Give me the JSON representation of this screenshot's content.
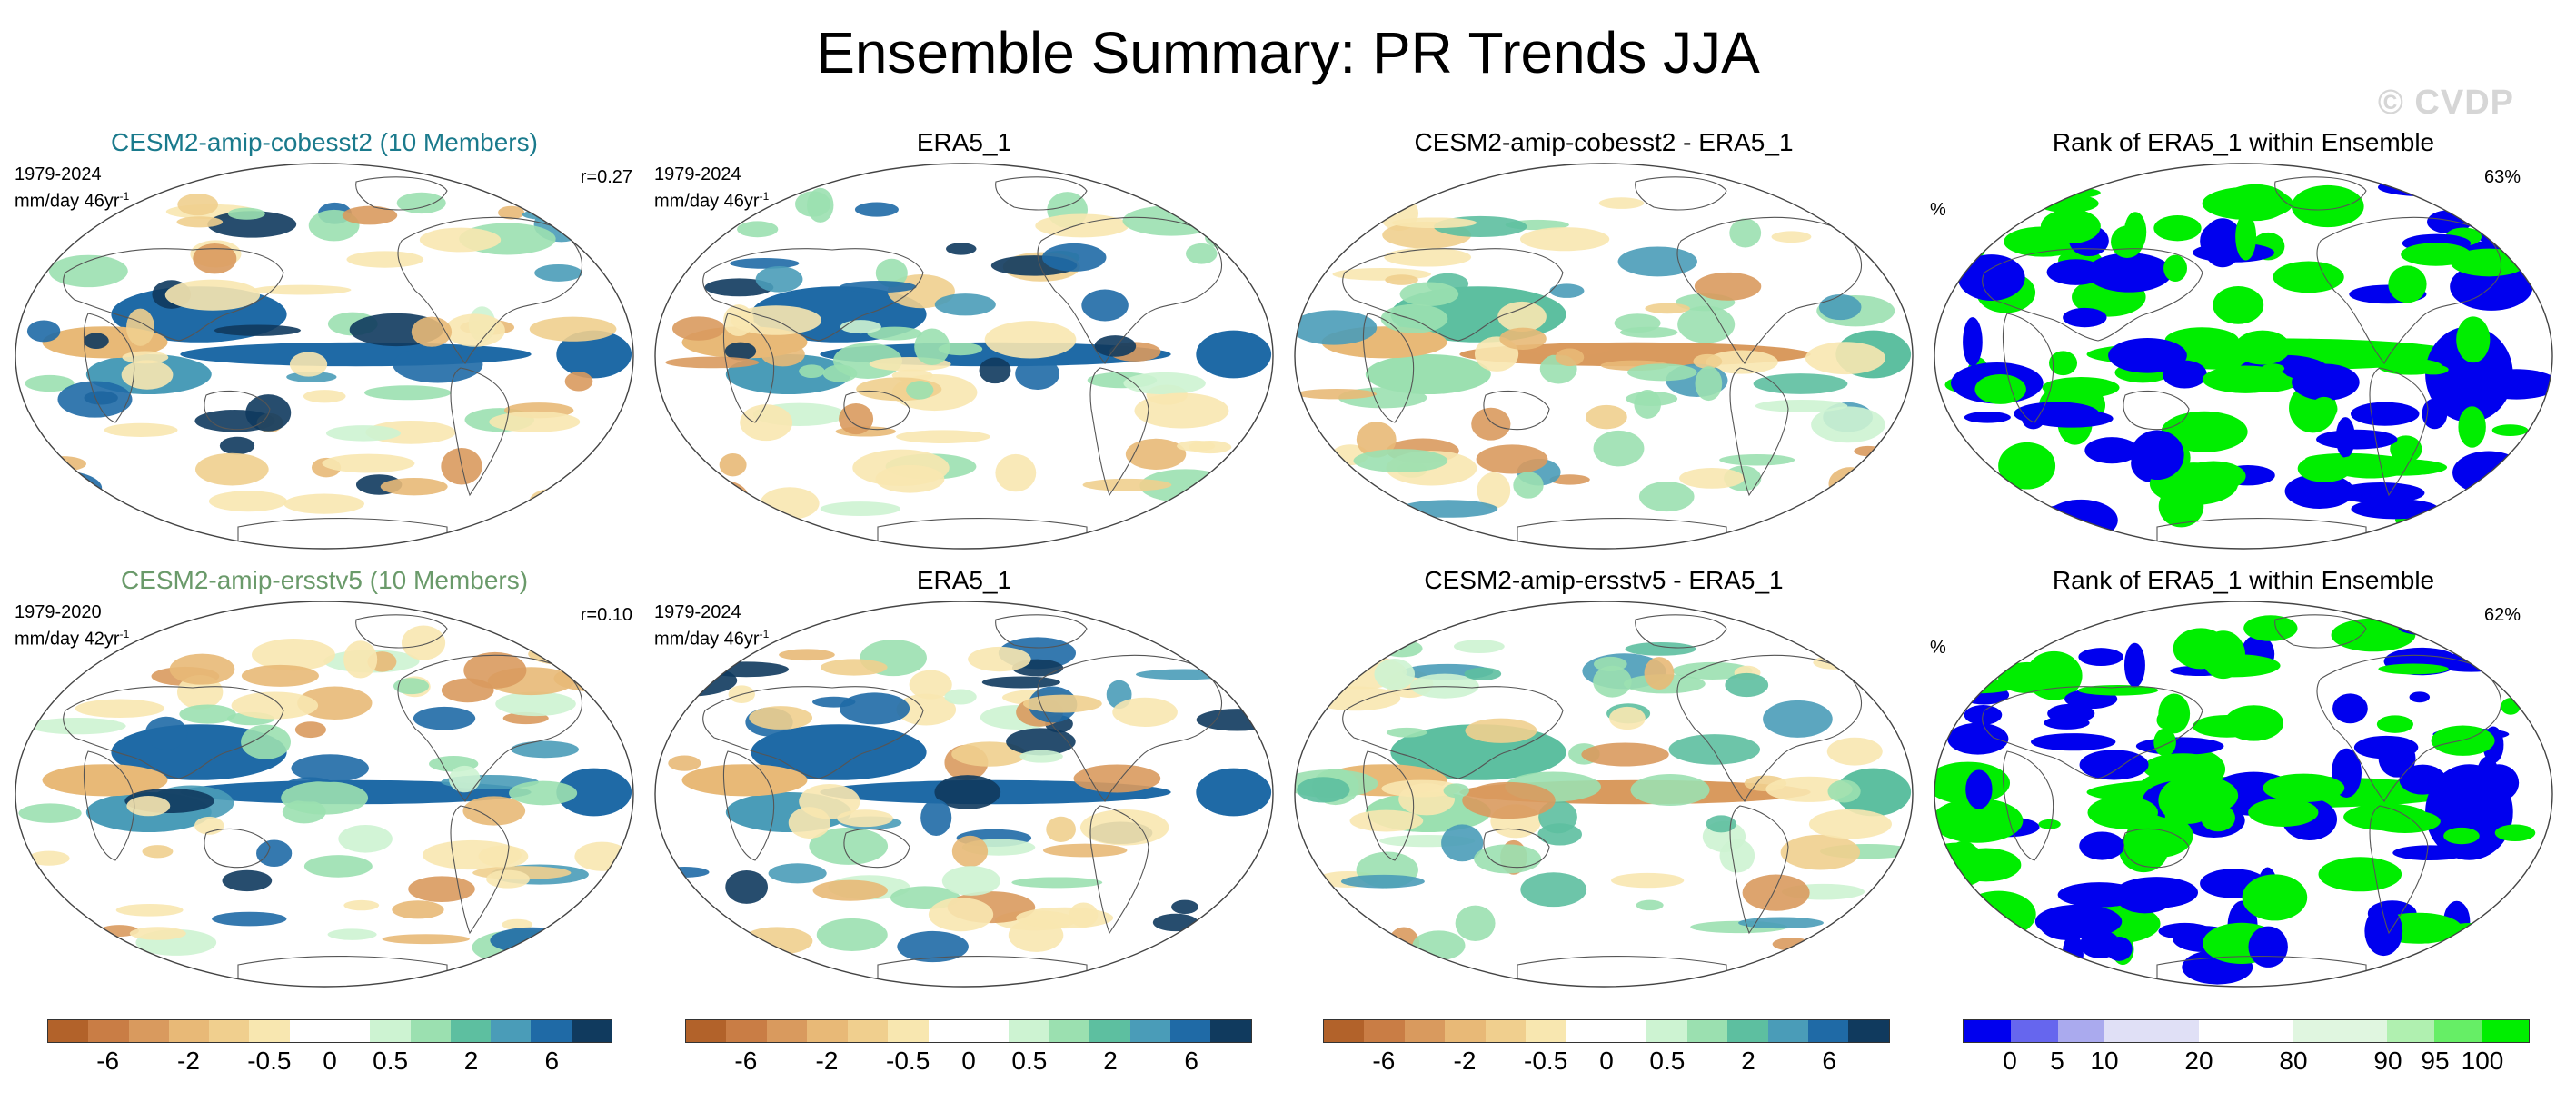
{
  "title": "Ensemble Summary: PR Trends JJA",
  "watermark": "© CVDP",
  "panels": [
    {
      "title": "CESM2-amip-cobesst2 (10 Members)",
      "period": "1979-2024",
      "units": "mm/day 46yr",
      "corr": "r=0.27"
    },
    {
      "title": "ERA5_1",
      "period": "1979-2024",
      "units": "mm/day 46yr"
    },
    {
      "title": "CESM2-amip-cobesst2 - ERA5_1"
    },
    {
      "title": "Rank of ERA5_1 within Ensemble",
      "pct": "63%",
      "pct_sign": "%"
    },
    {
      "title": "CESM2-amip-ersstv5 (10 Members)",
      "period": "1979-2020",
      "units": "mm/day 42yr",
      "corr": "r=0.10"
    },
    {
      "title": "ERA5_1",
      "period": "1979-2024",
      "units": "mm/day 46yr"
    },
    {
      "title": "CESM2-amip-ersstv5 - ERA5_1"
    },
    {
      "title": "Rank of ERA5_1 within Ensemble",
      "pct": "62%",
      "pct_sign": "%"
    }
  ],
  "colorbars": {
    "trend": {
      "colors": [
        "#b2622a",
        "#c97d45",
        "#d99a5e",
        "#e8b977",
        "#f0cf8e",
        "#f8e7b0",
        "#ffffff",
        "#ffffff",
        "#cdf3d2",
        "#9be0b0",
        "#5dbfa0",
        "#4a9cb8",
        "#1f6aa6",
        "#103a5e"
      ],
      "labels": [
        "-6",
        "-2",
        "-0.5",
        "0",
        "0.5",
        "2",
        "6"
      ]
    },
    "rank": {
      "colors": [
        "#0000ee",
        "#6666ee",
        "#aaaaee",
        "#e0e0f6",
        "#e0e0f6",
        "#ffffff",
        "#ffffff",
        "#e0f6e0",
        "#e0f6e0",
        "#b0f0b0",
        "#66ee66",
        "#00ee00"
      ],
      "labels": [
        "0",
        "5",
        "10",
        "20",
        "80",
        "90",
        "95",
        "100"
      ]
    }
  }
}
